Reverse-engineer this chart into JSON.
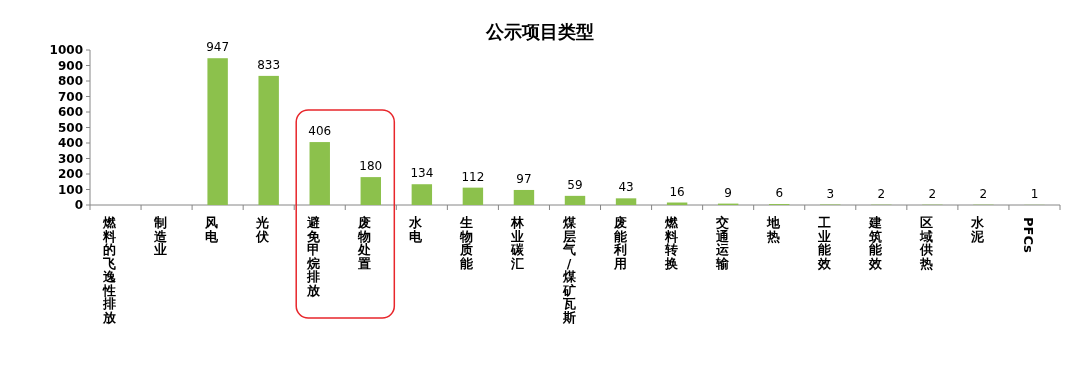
{
  "chart_data": {
    "type": "bar",
    "title": "公示项目类型",
    "categories": [
      "燃料的飞逸性排放",
      "制造业",
      "风电",
      "光伏",
      "避免甲烷排放",
      "废物处置",
      "水电",
      "生物质能",
      "林业碳汇",
      "煤层气/煤矿瓦斯",
      "废能利用",
      "燃料转换",
      "交通运输",
      "地热",
      "工业能效",
      "建筑能效",
      "区域供热",
      "水泥",
      "PFCs"
    ],
    "values": [
      null,
      null,
      947,
      833,
      406,
      180,
      134,
      112,
      97,
      59,
      43,
      16,
      9,
      6,
      3,
      2,
      2,
      2,
      1
    ],
    "color": "#8cc14c",
    "ylim": [
      0,
      1000
    ],
    "yticks": [
      0,
      100,
      200,
      300,
      400,
      500,
      600,
      700,
      800,
      900,
      1000
    ],
    "data_labels": true,
    "grid": false
  }
}
